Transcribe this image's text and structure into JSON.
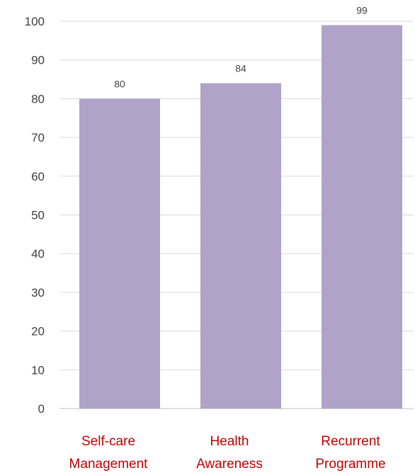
{
  "chart_data": {
    "type": "bar",
    "categories": [
      [
        "Self-care",
        "Management"
      ],
      [
        "Health",
        "Awareness"
      ],
      [
        "Recurrent",
        "Programme"
      ]
    ],
    "values": [
      80,
      84,
      99
    ],
    "ylim": [
      0,
      100
    ],
    "yticks": [
      0,
      10,
      20,
      30,
      40,
      50,
      60,
      70,
      80,
      90,
      100
    ],
    "grid": true,
    "legend": "none",
    "title": "",
    "xlabel": "",
    "ylabel": "",
    "colors": {
      "bar": "#b0a2c9",
      "grid": "#d9d9d9",
      "axis": "#bfbfbf",
      "tick_text": "#404040",
      "category_text": "#c00000"
    }
  }
}
